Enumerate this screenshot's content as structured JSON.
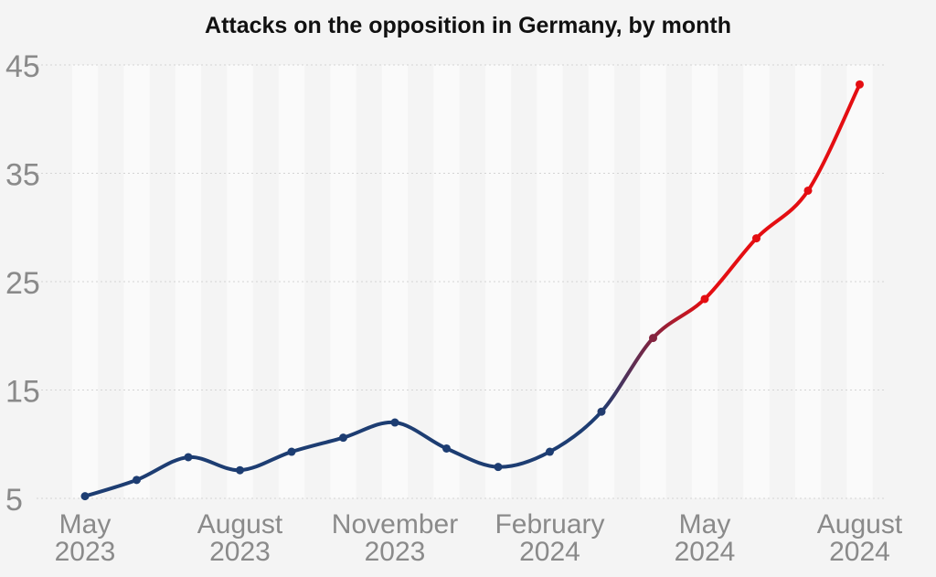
{
  "chart_data": {
    "type": "line",
    "title": "Attacks on the opposition in Germany, by month",
    "xlabel": "",
    "ylabel": "",
    "ylim": [
      5,
      45
    ],
    "yticks": [
      5,
      15,
      25,
      35,
      45
    ],
    "grid": "horizontal dotted",
    "x": [
      "2023-05",
      "2023-06",
      "2023-07",
      "2023-08",
      "2023-09",
      "2023-10",
      "2023-11",
      "2023-12",
      "2024-01",
      "2024-02",
      "2024-03",
      "2024-04",
      "2024-05",
      "2024-06",
      "2024-07",
      "2024-08"
    ],
    "values": [
      5.2,
      6.7,
      8.8,
      7.6,
      9.3,
      10.6,
      12.0,
      9.6,
      7.9,
      9.3,
      13.0,
      19.8,
      23.4,
      29.0,
      33.4,
      43.2
    ],
    "xticks": [
      {
        "month": "2023-05",
        "line1": "May",
        "line2": "2023"
      },
      {
        "month": "2023-08",
        "line1": "August",
        "line2": "2023"
      },
      {
        "month": "2023-11",
        "line1": "November",
        "line2": "2023"
      },
      {
        "month": "2024-02",
        "line1": "February",
        "line2": "2024"
      },
      {
        "month": "2024-05",
        "line1": "May",
        "line2": "2024"
      },
      {
        "month": "2024-08",
        "line1": "August",
        "line2": "2024"
      }
    ],
    "colors": {
      "line_start": "#1d3d72",
      "line_end": "#e40e12",
      "grid": "#d4d4d4",
      "band": "#fafafa",
      "background": "#f4f4f4"
    }
  }
}
